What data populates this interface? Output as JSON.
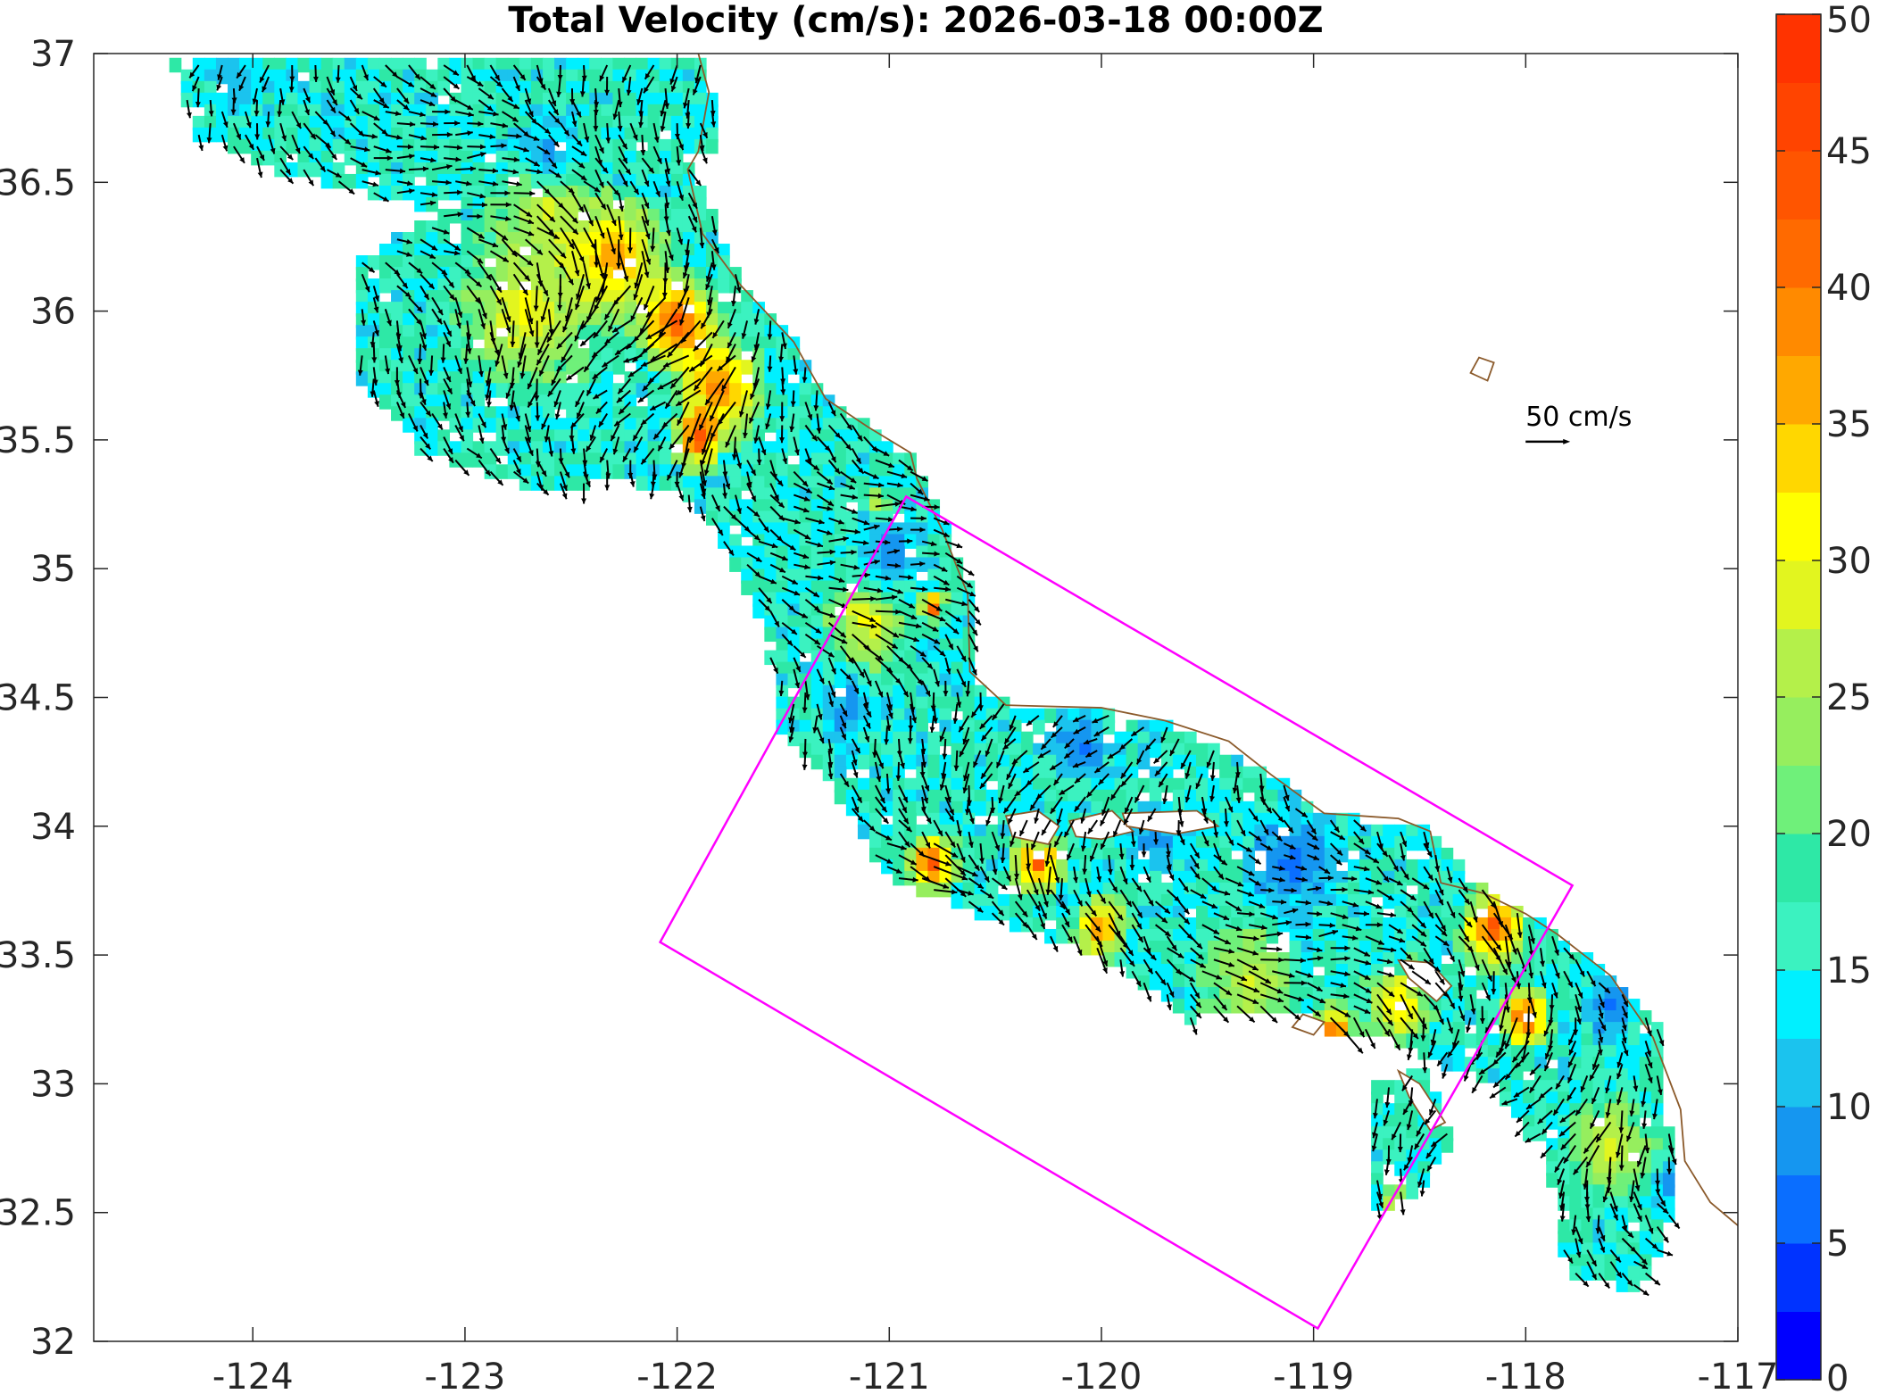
{
  "chart_data": {
    "type": "map",
    "title": "Total Velocity (cm/s): 2026-03-18 00:00Z",
    "xlim": [
      -124.75,
      -117
    ],
    "ylim": [
      32,
      37
    ],
    "x_ticks": [
      -124,
      -123,
      -122,
      -121,
      -120,
      -119,
      -118,
      -117
    ],
    "x_tick_labels": [
      "-124",
      "-123",
      "-122",
      "-121",
      "-120",
      "-119",
      "-118",
      "-117"
    ],
    "y_ticks": [
      32,
      32.5,
      33,
      33.5,
      34,
      34.5,
      35,
      35.5,
      36,
      36.5,
      37
    ],
    "y_tick_labels": [
      "32",
      "32.5",
      "33",
      "33.5",
      "34",
      "34.5",
      "35",
      "35.5",
      "36",
      "36.5",
      "37"
    ],
    "colorbar": {
      "range": [
        0,
        50
      ],
      "tick_values": [
        0,
        5,
        10,
        15,
        20,
        25,
        30,
        35,
        40,
        45,
        50
      ],
      "tick_labels": [
        "0",
        "5",
        "10",
        "15",
        "20",
        "25",
        "30",
        "35",
        "40",
        "45",
        "50"
      ],
      "colors": [
        "#0000ff",
        "#0033ff",
        "#0a6eff",
        "#1596f0",
        "#1bc3ee",
        "#00f0ff",
        "#3bf2c0",
        "#2ee8a6",
        "#6ff07a",
        "#96ee5e",
        "#b4f04a",
        "#e2f51f",
        "#ffff00",
        "#ffd700",
        "#ffa800",
        "#ff8a00",
        "#ff6a00",
        "#ff5500",
        "#ff4400",
        "#ff3300"
      ]
    },
    "scale_arrow": {
      "label": "50 cm/s",
      "speed": 50,
      "lon": -117.95,
      "lat": 35.5
    },
    "domain_box_color": "#ff00ff",
    "domain_box": [
      [
        -120.92,
        35.28
      ],
      [
        -117.78,
        33.77
      ],
      [
        -118.98,
        32.05
      ],
      [
        -122.08,
        33.55
      ]
    ],
    "coastline_color": "#8b5a2b",
    "coastline": [
      [
        -121.9,
        37.0
      ],
      [
        -121.85,
        36.85
      ],
      [
        -121.9,
        36.62
      ],
      [
        -121.95,
        36.55
      ],
      [
        -121.88,
        36.3
      ],
      [
        -121.7,
        36.1
      ],
      [
        -121.45,
        35.88
      ],
      [
        -121.3,
        35.66
      ],
      [
        -121.1,
        35.55
      ],
      [
        -120.9,
        35.45
      ],
      [
        -120.87,
        35.35
      ],
      [
        -120.75,
        35.15
      ],
      [
        -120.63,
        34.9
      ],
      [
        -120.62,
        34.6
      ],
      [
        -120.45,
        34.47
      ],
      [
        -120.0,
        34.46
      ],
      [
        -119.7,
        34.41
      ],
      [
        -119.4,
        34.33
      ],
      [
        -119.2,
        34.2
      ],
      [
        -118.95,
        34.05
      ],
      [
        -118.6,
        34.03
      ],
      [
        -118.45,
        33.98
      ],
      [
        -118.4,
        33.78
      ],
      [
        -118.2,
        33.74
      ],
      [
        -118.0,
        33.66
      ],
      [
        -117.85,
        33.58
      ],
      [
        -117.6,
        33.42
      ],
      [
        -117.4,
        33.18
      ],
      [
        -117.27,
        32.9
      ],
      [
        -117.25,
        32.7
      ],
      [
        -117.13,
        32.54
      ],
      [
        -117.0,
        32.45
      ]
    ],
    "islands": [
      [
        [
          -120.45,
          34.04
        ],
        [
          -120.3,
          34.06
        ],
        [
          -120.2,
          34.0
        ],
        [
          -120.25,
          33.93
        ],
        [
          -120.42,
          33.96
        ]
      ],
      [
        [
          -120.15,
          34.02
        ],
        [
          -119.95,
          34.06
        ],
        [
          -119.85,
          33.98
        ],
        [
          -120.0,
          33.95
        ],
        [
          -120.12,
          33.96
        ]
      ],
      [
        [
          -119.9,
          34.05
        ],
        [
          -119.55,
          34.06
        ],
        [
          -119.45,
          34.0
        ],
        [
          -119.65,
          33.97
        ],
        [
          -119.88,
          34.0
        ]
      ],
      [
        [
          -118.6,
          33.48
        ],
        [
          -118.45,
          33.47
        ],
        [
          -118.35,
          33.38
        ],
        [
          -118.42,
          33.32
        ],
        [
          -118.55,
          33.41
        ]
      ],
      [
        [
          -118.6,
          33.05
        ],
        [
          -118.5,
          33.0
        ],
        [
          -118.38,
          32.85
        ],
        [
          -118.45,
          32.82
        ],
        [
          -118.55,
          32.95
        ]
      ],
      [
        [
          -119.05,
          33.27
        ],
        [
          -118.95,
          33.24
        ],
        [
          -119.0,
          33.19
        ],
        [
          -119.1,
          33.22
        ]
      ],
      [
        [
          -118.22,
          35.82
        ],
        [
          -118.15,
          35.8
        ],
        [
          -118.18,
          35.73
        ],
        [
          -118.26,
          35.76
        ]
      ]
    ],
    "grid_spacing_deg": 0.055,
    "grid_step_deg": 0.055,
    "arrow_scale_deg_per_cms": 0.0042,
    "coverage_regions": [
      [
        [
          -124.4,
          37.0
        ],
        [
          -121.85,
          37.0
        ],
        [
          -121.8,
          36.6
        ],
        [
          -122.2,
          36.6
        ],
        [
          -122.5,
          36.5
        ],
        [
          -123.2,
          36.4
        ],
        [
          -123.9,
          36.55
        ],
        [
          -124.3,
          36.7
        ]
      ],
      [
        [
          -123.5,
          36.2
        ],
        [
          -122.6,
          36.6
        ],
        [
          -121.95,
          36.6
        ],
        [
          -121.7,
          36.1
        ],
        [
          -121.45,
          35.88
        ],
        [
          -121.3,
          35.66
        ],
        [
          -121.1,
          35.55
        ],
        [
          -120.9,
          35.45
        ],
        [
          -120.87,
          35.32
        ],
        [
          -121.0,
          35.1
        ],
        [
          -121.6,
          34.95
        ],
        [
          -122.0,
          35.3
        ],
        [
          -122.3,
          35.35
        ],
        [
          -122.6,
          35.3
        ],
        [
          -123.2,
          35.45
        ],
        [
          -123.5,
          35.75
        ]
      ],
      [
        [
          -121.85,
          35.2
        ],
        [
          -120.9,
          35.45
        ],
        [
          -120.62,
          34.95
        ],
        [
          -120.62,
          34.55
        ],
        [
          -120.45,
          34.47
        ],
        [
          -119.7,
          34.41
        ],
        [
          -119.2,
          34.2
        ],
        [
          -118.95,
          34.05
        ],
        [
          -118.45,
          33.98
        ],
        [
          -118.2,
          33.75
        ],
        [
          -117.85,
          33.58
        ],
        [
          -117.6,
          33.42
        ],
        [
          -117.35,
          33.2
        ],
        [
          -117.3,
          32.5
        ],
        [
          -117.45,
          32.2
        ],
        [
          -117.8,
          32.25
        ],
        [
          -117.9,
          32.7
        ],
        [
          -118.15,
          33.0
        ],
        [
          -118.6,
          33.15
        ],
        [
          -118.9,
          33.2
        ],
        [
          -119.2,
          33.3
        ],
        [
          -119.6,
          33.25
        ],
        [
          -120.0,
          33.5
        ],
        [
          -120.3,
          33.58
        ],
        [
          -120.7,
          33.7
        ],
        [
          -121.0,
          33.8
        ],
        [
          -121.3,
          34.2
        ],
        [
          -121.5,
          34.35
        ],
        [
          -121.6,
          34.8
        ]
      ],
      [
        [
          -118.72,
          33.0
        ],
        [
          -118.45,
          33.05
        ],
        [
          -118.35,
          32.75
        ],
        [
          -118.55,
          32.55
        ],
        [
          -118.75,
          32.5
        ],
        [
          -118.7,
          32.8
        ]
      ]
    ],
    "speed_hotspots": [
      {
        "lon": -122.3,
        "lat": 36.2,
        "speed": 40,
        "radius": 0.3
      },
      {
        "lon": -122.0,
        "lat": 35.95,
        "speed": 45,
        "radius": 0.25
      },
      {
        "lon": -121.8,
        "lat": 35.7,
        "speed": 42,
        "radius": 0.25
      },
      {
        "lon": -121.9,
        "lat": 35.5,
        "speed": 47,
        "radius": 0.15
      },
      {
        "lon": -122.7,
        "lat": 36.0,
        "speed": 32,
        "radius": 0.4
      },
      {
        "lon": -122.6,
        "lat": 36.4,
        "speed": 30,
        "radius": 0.3
      },
      {
        "lon": -121.1,
        "lat": 34.8,
        "speed": 32,
        "radius": 0.25
      },
      {
        "lon": -121.05,
        "lat": 35.25,
        "speed": 36,
        "radius": 0.08
      },
      {
        "lon": -120.8,
        "lat": 34.85,
        "speed": 48,
        "radius": 0.08
      },
      {
        "lon": -120.3,
        "lat": 33.85,
        "speed": 45,
        "radius": 0.15
      },
      {
        "lon": -120.0,
        "lat": 33.6,
        "speed": 42,
        "radius": 0.15
      },
      {
        "lon": -120.8,
        "lat": 33.85,
        "speed": 46,
        "radius": 0.15
      },
      {
        "lon": -118.9,
        "lat": 33.2,
        "speed": 45,
        "radius": 0.12
      },
      {
        "lon": -118.15,
        "lat": 33.6,
        "speed": 46,
        "radius": 0.2
      },
      {
        "lon": -118.0,
        "lat": 33.25,
        "speed": 47,
        "radius": 0.15
      },
      {
        "lon": -118.6,
        "lat": 33.3,
        "speed": 35,
        "radius": 0.2
      },
      {
        "lon": -118.6,
        "lat": 32.5,
        "speed": 34,
        "radius": 0.12
      },
      {
        "lon": -117.6,
        "lat": 32.75,
        "speed": 30,
        "radius": 0.25
      },
      {
        "lon": -119.3,
        "lat": 33.4,
        "speed": 28,
        "radius": 0.3
      }
    ],
    "slow_zones": [
      {
        "lon": -122.6,
        "lat": 36.6,
        "speed": 8,
        "radius": 0.2
      },
      {
        "lon": -121.0,
        "lat": 35.05,
        "speed": 8,
        "radius": 0.25
      },
      {
        "lon": -121.2,
        "lat": 34.45,
        "speed": 8,
        "radius": 0.2
      },
      {
        "lon": -120.1,
        "lat": 34.3,
        "speed": 6,
        "radius": 0.2
      },
      {
        "lon": -119.75,
        "lat": 33.95,
        "speed": 8,
        "radius": 0.2
      },
      {
        "lon": -119.1,
        "lat": 33.85,
        "speed": 6,
        "radius": 0.3
      },
      {
        "lon": -117.6,
        "lat": 33.3,
        "speed": 7,
        "radius": 0.2
      },
      {
        "lon": -117.3,
        "lat": 32.6,
        "speed": 8,
        "radius": 0.15
      },
      {
        "lon": -124.1,
        "lat": 36.9,
        "speed": 10,
        "radius": 0.2
      }
    ]
  }
}
